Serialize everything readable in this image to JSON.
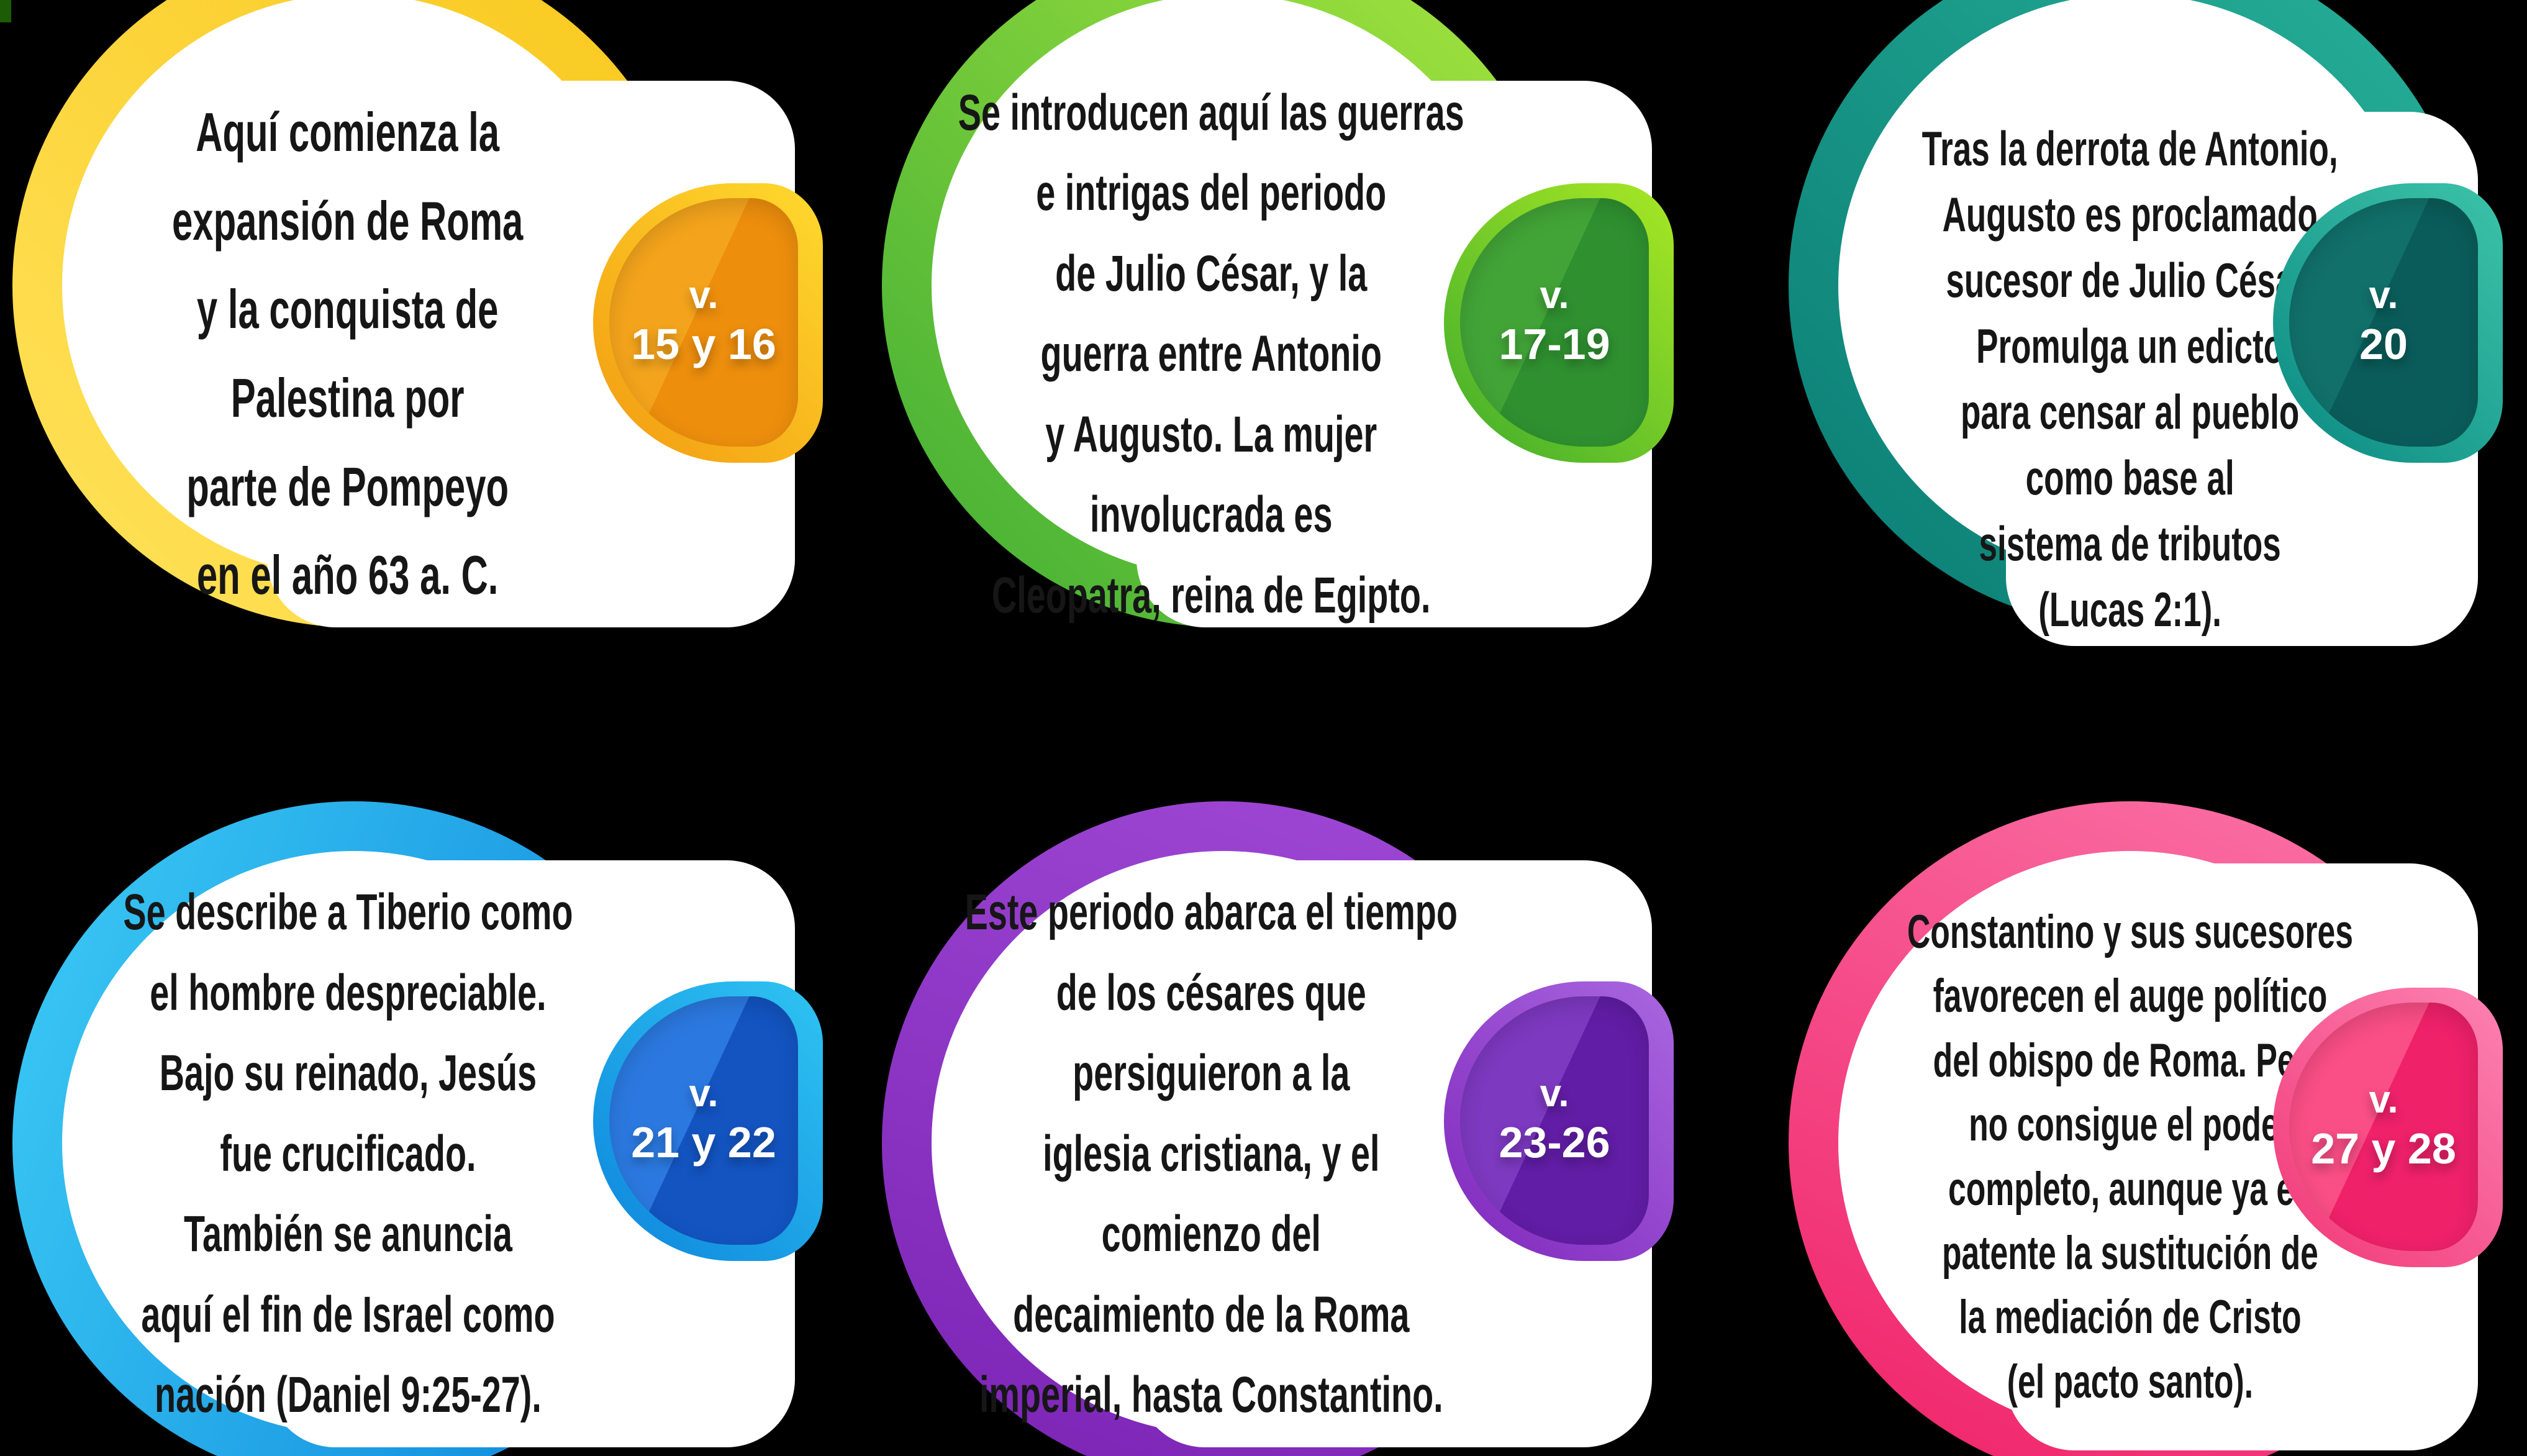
{
  "page": {
    "background": "#000000",
    "artifact_color": "#1D5C07"
  },
  "cards": [
    {
      "id": "verses-15-16",
      "text": "Aquí comienza la\nexpansión de Roma\ny la conquista de\nPalestina por\nparte de Pompeyo\nen el año 63 a. C.",
      "badge": {
        "prefix": "v.",
        "verses": "15 y 16"
      },
      "theme": {
        "ring_light": "#FFE35C",
        "ring_dark": "#F9C71B",
        "bo_light": "#FFDA2E",
        "bo_dark": "#F29A10",
        "bi_light": "#F4A41C",
        "bi_dark": "#ED8E0D"
      }
    },
    {
      "id": "verses-17-19",
      "text": "Se introducen aquí las guerras\ne intrigas del periodo\nde Julio César, y la\nguerra entre Antonio\ny Augusto. La mujer\ninvolucrada es\nCleopatra, reina de Egipto.",
      "badge": {
        "prefix": "v.",
        "verses": "17-19"
      },
      "theme": {
        "ring_light": "#A8E63E",
        "ring_dark": "#3FAD35",
        "bo_light": "#A9E824",
        "bo_dark": "#3EAC2C",
        "bi_light": "#42A437",
        "bi_dark": "#2F9030"
      }
    },
    {
      "id": "verses-20",
      "text": "Tras la derrota de Antonio,\nAugusto es proclamado\nsucesor de Julio César.\nPromulga un edicto\npara censar al pueblo\ncomo base al\nsistema de tributos\n(Lucas 2:1).",
      "badge": {
        "prefix": "v.",
        "verses": "20"
      },
      "theme": {
        "ring_light": "#27B199",
        "ring_dark": "#0A7C74",
        "bo_light": "#3DC3A9",
        "bo_dark": "#0B8A82",
        "bi_light": "#11706A",
        "bi_dark": "#0A5C5A"
      }
    },
    {
      "id": "verses-21-22",
      "text": "Se describe a Tiberio como\nel hombre despreciable.\nBajo su reinado, Jesús\nfue crucificado.\nTambién se anuncia\naquí el fin de Israel como\nnación (Daniel 9:25-27).",
      "badge": {
        "prefix": "v.",
        "verses": "21 y 22"
      },
      "theme": {
        "ring_light": "#3CCBF5",
        "ring_dark": "#0B82DA",
        "bo_light": "#2FC4F2",
        "bo_dark": "#0D85DC",
        "bi_light": "#2B79E0",
        "bi_dark": "#1354C1"
      }
    },
    {
      "id": "verses-23-26",
      "text": "Este periodo abarca el tiempo\nde los césares que\npersiguieron a la\niglesia cristiana, y el\ncomienzo del\ndecaimiento de la Roma\nimperial, hasta Constantino.",
      "badge": {
        "prefix": "v.",
        "verses": "23-26"
      },
      "theme": {
        "ring_light": "#A149D6",
        "ring_dark": "#7A23B4",
        "bo_light": "#A967E0",
        "bo_dark": "#7F27BC",
        "bi_light": "#7D39C0",
        "bi_dark": "#611DA5"
      }
    },
    {
      "id": "verses-27-28",
      "text": "Constantino y sus sucesores\nfavorecen el auge político\ndel obispo de Roma. Pero\nno consigue el poder\ncompleto, aunque ya es\npatente la sustitución de\nla mediación de Cristo\n(el pacto santo).",
      "badge": {
        "prefix": "v.",
        "verses": "27 y 28"
      },
      "theme": {
        "ring_light": "#FB74A8",
        "ring_dark": "#EF2066",
        "bo_light": "#FC82B2",
        "bo_dark": "#F13876",
        "bi_light": "#F94E86",
        "bi_dark": "#EE2169"
      }
    }
  ]
}
